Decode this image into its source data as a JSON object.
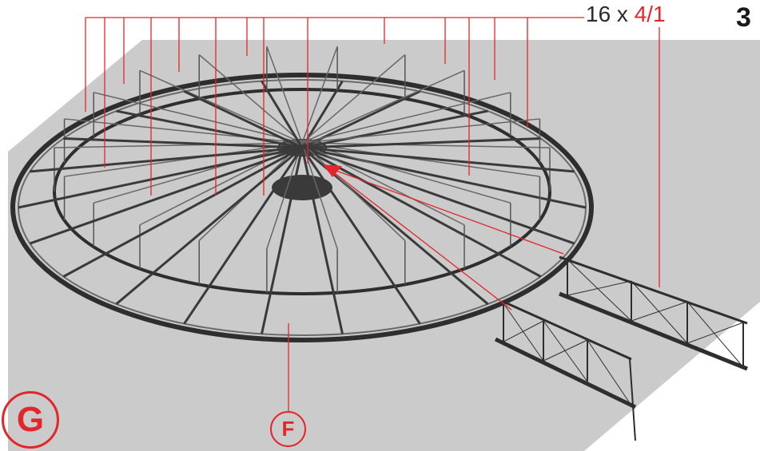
{
  "callout": {
    "quantity_prefix": "16 x ",
    "part_number": "4/1"
  },
  "step_number": "3",
  "labels": {
    "g": "G",
    "f": "F"
  },
  "colors": {
    "accent": "#e3262b",
    "floor": "#cbcbcb",
    "steel": "#3a3a3a"
  }
}
